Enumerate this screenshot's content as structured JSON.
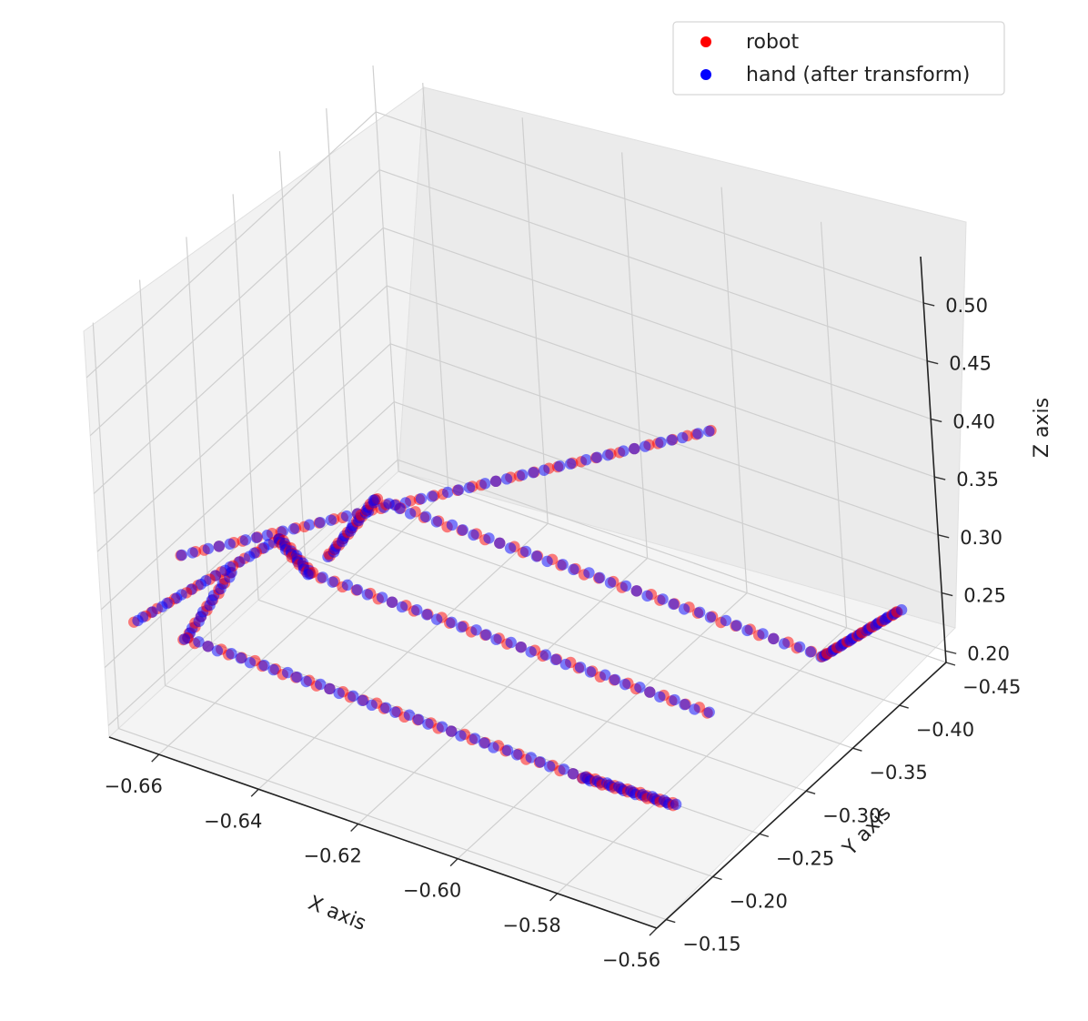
{
  "chart_data": {
    "type": "scatter",
    "projection": "3d",
    "title": "",
    "xlabel": "X axis",
    "ylabel": "Y axis",
    "zlabel": "Z axis",
    "xlim": [
      -0.67,
      -0.56
    ],
    "ylim": [
      -0.45,
      -0.14
    ],
    "zlim": [
      0.19,
      0.54
    ],
    "grid": true,
    "legend_position": "top-right",
    "x_ticks": [
      -0.66,
      -0.64,
      -0.62,
      -0.6,
      -0.58,
      -0.56
    ],
    "x_tick_labels": [
      "−0.66",
      "−0.64",
      "−0.62",
      "−0.60",
      "−0.58",
      "−0.56"
    ],
    "y_ticks": [
      -0.15,
      -0.2,
      -0.25,
      -0.3,
      -0.35,
      -0.4,
      -0.45
    ],
    "y_tick_labels": [
      "−0.15",
      "−0.20",
      "−0.25",
      "−0.30",
      "−0.35",
      "−0.40",
      "−0.45"
    ],
    "z_ticks": [
      0.2,
      0.25,
      0.3,
      0.35,
      0.4,
      0.45,
      0.5
    ],
    "z_tick_labels": [
      "0.20",
      "0.25",
      "0.30",
      "0.35",
      "0.40",
      "0.45",
      "0.50"
    ],
    "series": [
      {
        "name": "robot",
        "color": "#ff0000",
        "marker_alpha": 0.5
      },
      {
        "name": "hand (after transform)",
        "color": "#0000ff",
        "marker_alpha": 0.5
      }
    ],
    "trajectory_segments": [
      {
        "from": [
          -0.665,
          -0.2,
          0.31
        ],
        "to": [
          -0.565,
          -0.25,
          0.53
        ],
        "n": 42
      },
      {
        "from": [
          -0.655,
          -0.15,
          0.29
        ],
        "to": [
          -0.655,
          -0.2,
          0.31
        ],
        "n": 12
      },
      {
        "from": [
          -0.655,
          -0.15,
          0.29
        ],
        "to": [
          -0.575,
          -0.15,
          0.29
        ],
        "n": 36
      },
      {
        "from": [
          -0.575,
          -0.15,
          0.29
        ],
        "to": [
          -0.575,
          -0.24,
          0.2
        ],
        "n": 22
      },
      {
        "from": [
          -0.665,
          -0.3,
          0.25
        ],
        "to": [
          -0.665,
          -0.15,
          0.29
        ],
        "n": 18
      },
      {
        "from": [
          -0.665,
          -0.3,
          0.25
        ],
        "to": [
          -0.655,
          -0.28,
          0.25
        ],
        "n": 14
      },
      {
        "from": [
          -0.655,
          -0.28,
          0.25
        ],
        "to": [
          -0.575,
          -0.28,
          0.25
        ],
        "n": 34
      },
      {
        "from": [
          -0.655,
          -0.3,
          0.25
        ],
        "to": [
          -0.665,
          -0.4,
          0.21
        ],
        "n": 16
      },
      {
        "from": [
          -0.665,
          -0.4,
          0.21
        ],
        "to": [
          -0.575,
          -0.4,
          0.21
        ],
        "n": 36
      },
      {
        "from": [
          -0.575,
          -0.4,
          0.21
        ],
        "to": [
          -0.575,
          -0.48,
          0.19
        ],
        "n": 24
      }
    ]
  }
}
